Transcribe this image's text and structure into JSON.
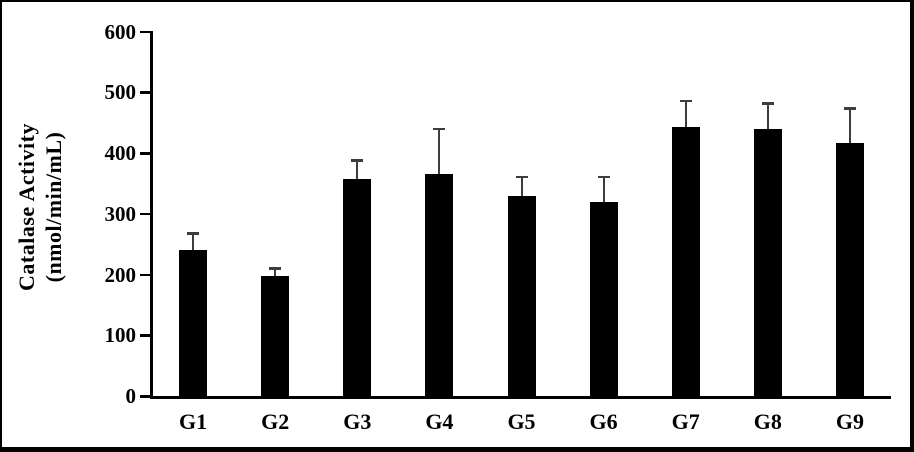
{
  "figure": {
    "ylabel_line1": "Catalase Activity",
    "ylabel_line2": "(nmol/min/mL)"
  },
  "chart_data": {
    "type": "bar",
    "title": "",
    "xlabel": "",
    "ylabel": "Catalase Activity (nmol/min/mL)",
    "categories": [
      "G1",
      "G2",
      "G3",
      "G4",
      "G5",
      "G6",
      "G7",
      "G8",
      "G9"
    ],
    "values": [
      240,
      197,
      358,
      365,
      330,
      320,
      442,
      440,
      417
    ],
    "errors_up": [
      28,
      13,
      30,
      75,
      31,
      41,
      44,
      42,
      57
    ],
    "ylim": [
      0,
      600
    ],
    "yticks": [
      0,
      100,
      200,
      300,
      400,
      500,
      600
    ],
    "grid": false,
    "legend_position": "none",
    "bar_color": "#000000",
    "error_color": "#3d3d3d",
    "axis_color": "#000000",
    "frame_color": "#000000"
  }
}
